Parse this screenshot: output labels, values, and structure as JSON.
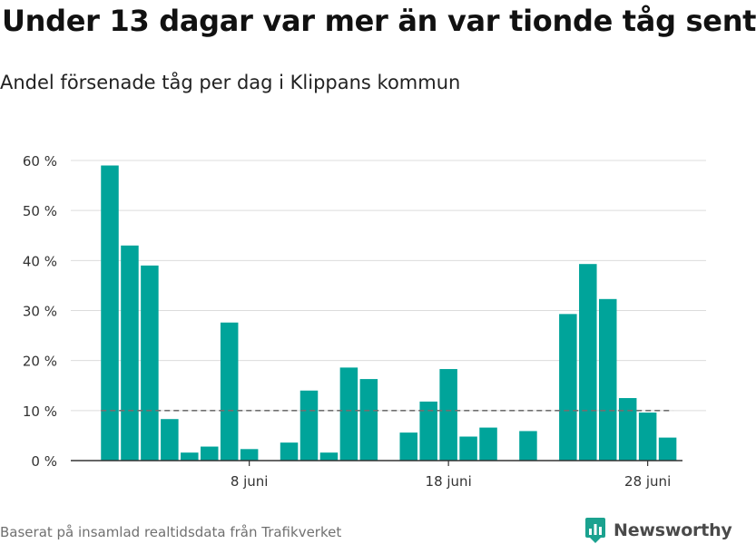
{
  "chart_data": {
    "type": "bar",
    "title": "Under 13 dagar var mer än var tionde tåg sent",
    "subtitle": "Andel försenade tåg per dag i Klippans kommun",
    "ylim": [
      0,
      60
    ],
    "yticks": [
      0,
      10,
      20,
      30,
      40,
      50,
      60
    ],
    "ytick_suffix": " %",
    "x_tick_labels": [
      {
        "day": 8,
        "label": "8 juni"
      },
      {
        "day": 18,
        "label": "18 juni"
      },
      {
        "day": 28,
        "label": "28 juni"
      }
    ],
    "days": [
      1,
      2,
      3,
      4,
      5,
      6,
      7,
      8,
      9,
      10,
      11,
      12,
      13,
      14,
      15,
      16,
      17,
      18,
      19,
      20,
      21,
      22,
      23,
      24,
      25,
      26,
      27,
      28,
      29,
      30
    ],
    "values": [
      59,
      43,
      39,
      8.3,
      1.6,
      2.8,
      27.6,
      2.3,
      null,
      3.6,
      14,
      1.6,
      18.6,
      16.3,
      null,
      5.6,
      11.8,
      18.3,
      4.8,
      6.6,
      null,
      5.9,
      null,
      29.3,
      39.3,
      32.3,
      12.5,
      9.6,
      4.6,
      null
    ],
    "reference_line": 10,
    "colors": {
      "bar": "#00a49a",
      "grid": "#dcdcdc",
      "reference": "#707070",
      "axis": "#333333",
      "brand": "#1ba28f"
    },
    "grid": true
  },
  "footer": {
    "source": "Baserat på insamlad realtidsdata från Trafikverket",
    "brand": "Newsworthy"
  }
}
